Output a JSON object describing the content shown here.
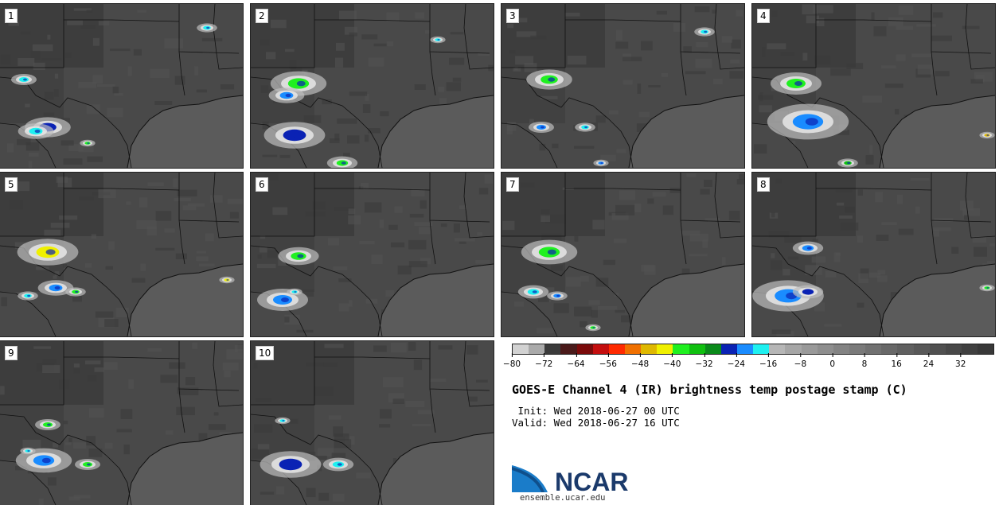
{
  "panels": [
    {
      "label": "1"
    },
    {
      "label": "2"
    },
    {
      "label": "3"
    },
    {
      "label": "4"
    },
    {
      "label": "5"
    },
    {
      "label": "6"
    },
    {
      "label": "7"
    },
    {
      "label": "8"
    },
    {
      "label": "9"
    },
    {
      "label": "10"
    }
  ],
  "colorbar": {
    "colors": [
      "#d2d2d2",
      "#aaaaaa",
      "#3b3b3b",
      "#4a1a1a",
      "#7a0a0a",
      "#c40e0e",
      "#ff2a00",
      "#f07000",
      "#dfb800",
      "#f0f000",
      "#20f020",
      "#10c010",
      "#0a8a1a",
      "#0a22b4",
      "#1a8cff",
      "#1ef0f0",
      "#b6b6b6",
      "#a6a6a6",
      "#999999",
      "#8e8e8e",
      "#838383",
      "#7a7a7a",
      "#717171",
      "#686868",
      "#606060",
      "#585858",
      "#505050",
      "#484848",
      "#404040",
      "#383838"
    ],
    "ticks": [
      "−80",
      "−72",
      "−64",
      "−56",
      "−48",
      "−40",
      "−32",
      "−24",
      "−16",
      "−8",
      "0",
      "8",
      "16",
      "24",
      "32"
    ],
    "min": -80,
    "max": 40
  },
  "title": "GOES-E Channel 4 (IR) brightness temp postage stamp (C)",
  "init": " Init: Wed 2018-06-27 00 UTC",
  "valid": "Valid: Wed 2018-06-27 16 UTC",
  "logo": {
    "text": "NCAR",
    "color": "#1b3a6b",
    "accent": "#1a7cc9"
  },
  "url": "ensemble.ucar.edu"
}
